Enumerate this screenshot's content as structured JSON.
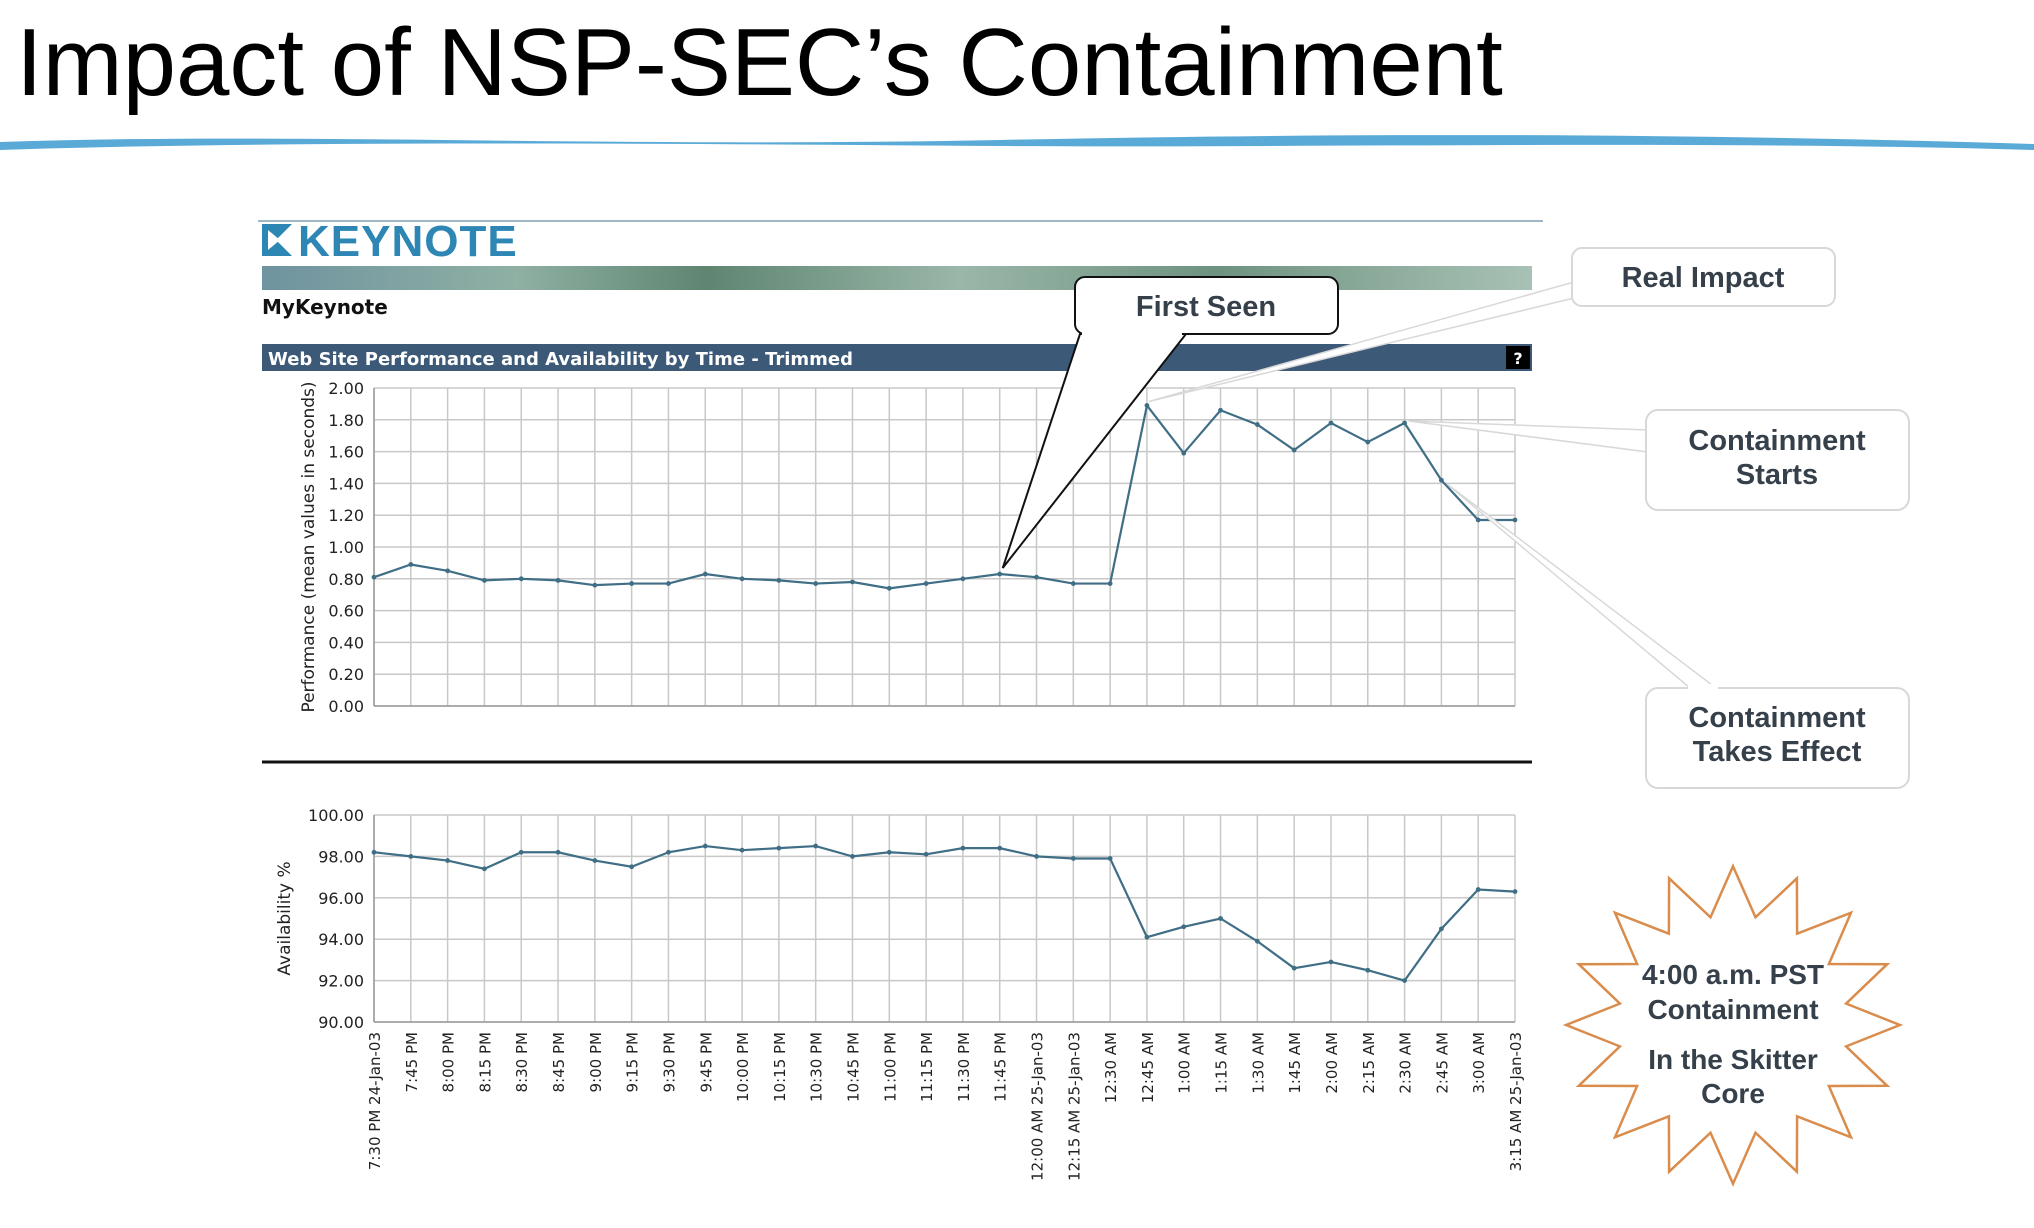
{
  "slide": {
    "title": "Impact of NSP-SEC’s Containment"
  },
  "keynote": {
    "logo_text": "KEYNOTE",
    "brand_link": "MyKeynote",
    "report_title": "Web Site Performance and Availability by Time - Trimmed",
    "help_label": "?"
  },
  "callouts": {
    "first_seen": "First Seen",
    "real_impact": "Real Impact",
    "containment_starts": [
      "Containment",
      "Starts"
    ],
    "containment_takes_effect": [
      "Containment",
      "Takes Effect"
    ],
    "starburst_line1": [
      "4:00 a.m. PST",
      "Containment"
    ],
    "starburst_line2": [
      "In the Skitter",
      "Core"
    ]
  },
  "colors": {
    "line": "#3f6e85",
    "grid": "#c8c8c8",
    "header_bar": "#3c5a78",
    "title_wave": "#5aaad8",
    "logo": "#2d86b3",
    "starburst": "#d98c4c"
  },
  "chart_data": [
    {
      "type": "line",
      "ylabel": "Performance (mean values in seconds)",
      "ylim": [
        0,
        2
      ],
      "yticks": [
        "2.00",
        "1.80",
        "1.60",
        "1.40",
        "1.20",
        "1.00",
        "0.80",
        "0.60",
        "0.40",
        "0.20",
        "0.00"
      ],
      "grid": true,
      "categories": [
        "7:30 PM 24-Jan-03",
        "7:45 PM",
        "8:00 PM",
        "8:15 PM",
        "8:30 PM",
        "8:45 PM",
        "9:00 PM",
        "9:15 PM",
        "9:30 PM",
        "9:45 PM",
        "10:00 PM",
        "10:15 PM",
        "10:30 PM",
        "10:45 PM",
        "11:00 PM",
        "11:15 PM",
        "11:30 PM",
        "11:45 PM",
        "12:00 AM 25-Jan-03",
        "12:15 AM 25-Jan-03",
        "12:30 AM",
        "12:45 AM",
        "1:00 AM",
        "1:15 AM",
        "1:30 AM",
        "1:45 AM",
        "2:00 AM",
        "2:15 AM",
        "2:30 AM",
        "2:45 AM",
        "3:00 AM",
        "3:15 AM 25-Jan-03"
      ],
      "values": [
        0.81,
        0.89,
        0.85,
        0.79,
        0.8,
        0.79,
        0.76,
        0.77,
        0.77,
        0.83,
        0.8,
        0.79,
        0.77,
        0.78,
        0.74,
        0.77,
        0.8,
        0.83,
        0.81,
        0.77,
        0.77,
        1.89,
        1.59,
        1.86,
        1.77,
        1.61,
        1.78,
        1.66,
        1.78,
        1.42,
        1.17,
        1.17
      ]
    },
    {
      "type": "line",
      "ylabel": "Availability %",
      "ylim": [
        90,
        100
      ],
      "yticks": [
        "100.00",
        "98.00",
        "96.00",
        "94.00",
        "92.00",
        "90.00"
      ],
      "grid": true,
      "categories": [
        "7:30 PM 24-Jan-03",
        "7:45 PM",
        "8:00 PM",
        "8:15 PM",
        "8:30 PM",
        "8:45 PM",
        "9:00 PM",
        "9:15 PM",
        "9:30 PM",
        "9:45 PM",
        "10:00 PM",
        "10:15 PM",
        "10:30 PM",
        "10:45 PM",
        "11:00 PM",
        "11:15 PM",
        "11:30 PM",
        "11:45 PM",
        "12:00 AM 25-Jan-03",
        "12:15 AM 25-Jan-03",
        "12:30 AM",
        "12:45 AM",
        "1:00 AM",
        "1:15 AM",
        "1:30 AM",
        "1:45 AM",
        "2:00 AM",
        "2:15 AM",
        "2:30 AM",
        "2:45 AM",
        "3:00 AM",
        "3:15 AM 25-Jan-03"
      ],
      "values": [
        98.2,
        98.0,
        97.8,
        97.4,
        98.2,
        98.2,
        97.8,
        97.5,
        98.2,
        98.5,
        98.3,
        98.4,
        98.5,
        98.0,
        98.2,
        98.1,
        98.4,
        98.4,
        98.0,
        97.9,
        97.9,
        94.1,
        94.6,
        95.0,
        93.9,
        92.6,
        92.9,
        92.5,
        92.0,
        94.5,
        96.4,
        96.3
      ]
    }
  ]
}
